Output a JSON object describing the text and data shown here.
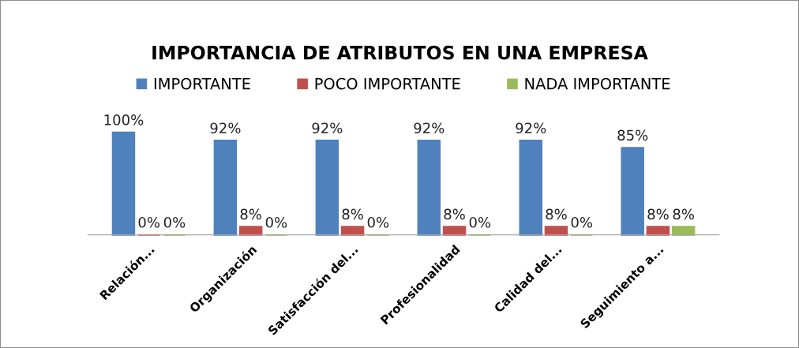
{
  "chart_data": {
    "type": "bar",
    "title": "IMPORTANCIA DE ATRIBUTOS EN UNA EMPRESA",
    "categories": [
      "Relación...",
      "Organización",
      "Satisfacción del...",
      "Profesionalidad",
      "Calidad del...",
      "Seguimiento a..."
    ],
    "series": [
      {
        "name": "IMPORTANTE",
        "color": "#4f81bd",
        "values": [
          100,
          92,
          92,
          92,
          92,
          85
        ],
        "value_labels": [
          "100%",
          "92%",
          "92%",
          "92%",
          "92%",
          "85%"
        ]
      },
      {
        "name": "POCO IMPORTANTE",
        "color": "#c0504d",
        "values": [
          0,
          8,
          8,
          8,
          8,
          8
        ],
        "value_labels": [
          "0%",
          "8%",
          "8%",
          "8%",
          "8%",
          "8%"
        ]
      },
      {
        "name": "NADA IMPORTANTE",
        "color": "#9bbb59",
        "values": [
          0,
          0,
          0,
          0,
          0,
          8
        ],
        "value_labels": [
          "0%",
          "0%",
          "0%",
          "0%",
          "0%",
          "8%"
        ]
      }
    ],
    "legend": "top",
    "grid": false
  }
}
